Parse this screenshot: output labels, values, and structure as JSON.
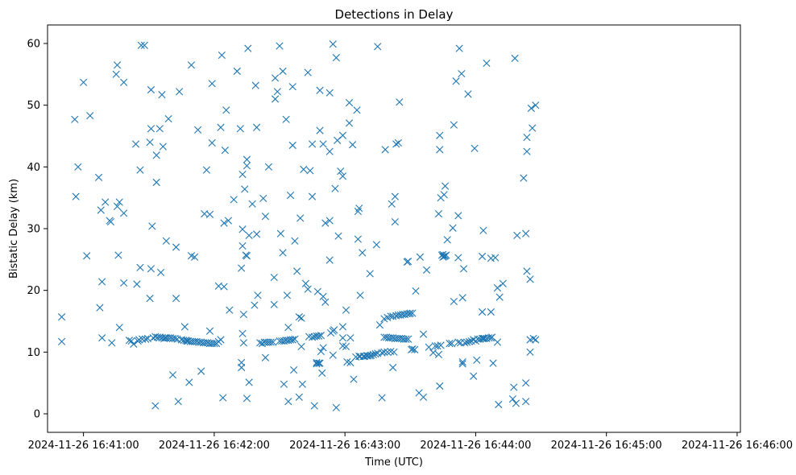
{
  "chart_data": {
    "type": "scatter",
    "title": "Detections in Delay",
    "xlabel": "Time (UTC)",
    "ylabel": "Bistatic Delay (km)",
    "marker": "x",
    "color": "#1f77b4",
    "x_unit": "seconds since 2024-11-26 16:41:00",
    "xlim": [
      -16.5,
      301.5
    ],
    "ylim": [
      -3.0,
      63.0
    ],
    "xticks": [
      {
        "value": 0,
        "label": "2024-11-26 16:41:00"
      },
      {
        "value": 60,
        "label": "2024-11-26 16:42:00"
      },
      {
        "value": 120,
        "label": "2024-11-26 16:43:00"
      },
      {
        "value": 180,
        "label": "2024-11-26 16:44:00"
      },
      {
        "value": 240,
        "label": "2024-11-26 16:45:00"
      },
      {
        "value": 300,
        "label": "2024-11-26 16:46:00"
      }
    ],
    "yticks": [
      {
        "value": 0,
        "label": "0"
      },
      {
        "value": 10,
        "label": "10"
      },
      {
        "value": 20,
        "label": "20"
      },
      {
        "value": 30,
        "label": "30"
      },
      {
        "value": 40,
        "label": "40"
      },
      {
        "value": 50,
        "label": "50"
      },
      {
        "value": 60,
        "label": "60"
      }
    ],
    "points": [
      [
        -10,
        15.7
      ],
      [
        -10,
        11.7
      ],
      [
        -4,
        47.7
      ],
      [
        -3.5,
        35.2
      ],
      [
        -2.5,
        40
      ],
      [
        0,
        53.7
      ],
      [
        1.5,
        25.6
      ],
      [
        3,
        48.3
      ],
      [
        7,
        38.3
      ],
      [
        7.5,
        17.2
      ],
      [
        8,
        33
      ],
      [
        8.5,
        21.4
      ],
      [
        8.5,
        12.3
      ],
      [
        10,
        34.3
      ],
      [
        12,
        31.3
      ],
      [
        12.5,
        31.1
      ],
      [
        13,
        11.5
      ],
      [
        15,
        55
      ],
      [
        15.5,
        56.5
      ],
      [
        15.5,
        33.6
      ],
      [
        16,
        25.7
      ],
      [
        16.5,
        34.3
      ],
      [
        16.5,
        14
      ],
      [
        18.5,
        53.7
      ],
      [
        18.5,
        32.5
      ],
      [
        18.5,
        21.2
      ],
      [
        21,
        11.9
      ],
      [
        22,
        11.8
      ],
      [
        23,
        11.3
      ],
      [
        24,
        43.7
      ],
      [
        24.5,
        21
      ],
      [
        25,
        11.8
      ],
      [
        25.5,
        12
      ],
      [
        26,
        39.5
      ],
      [
        26,
        23.7
      ],
      [
        26.5,
        59.7
      ],
      [
        27,
        12.1
      ],
      [
        28,
        59.7
      ],
      [
        28.5,
        12.1
      ],
      [
        29.5,
        12.2
      ],
      [
        30.5,
        44
      ],
      [
        30.5,
        18.7
      ],
      [
        31,
        52.5
      ],
      [
        31,
        46.2
      ],
      [
        31,
        23.5
      ],
      [
        31.5,
        30.4
      ],
      [
        32,
        12.3
      ],
      [
        33,
        12.5
      ],
      [
        33,
        1.3
      ],
      [
        33.5,
        41.9
      ],
      [
        33.5,
        37.5
      ],
      [
        34,
        12.4
      ],
      [
        35,
        46.2
      ],
      [
        35,
        12.4
      ],
      [
        35.5,
        22.9
      ],
      [
        36,
        12.3
      ],
      [
        36,
        51.7
      ],
      [
        36.5,
        43.3
      ],
      [
        37,
        12.2
      ],
      [
        37.5,
        12.3
      ],
      [
        38,
        12.3
      ],
      [
        38,
        28
      ],
      [
        39,
        12.3
      ],
      [
        39,
        47.8
      ],
      [
        40,
        12.3
      ],
      [
        41,
        12.2
      ],
      [
        41,
        6.3
      ],
      [
        42,
        12.2
      ],
      [
        42.5,
        18.7
      ],
      [
        42.5,
        27
      ],
      [
        43,
        12.1
      ],
      [
        43.5,
        2
      ],
      [
        44,
        52.2
      ],
      [
        45,
        12
      ],
      [
        46,
        11.9
      ],
      [
        46.5,
        14.1
      ],
      [
        47,
        11.9
      ],
      [
        47.5,
        11.8
      ],
      [
        48,
        11.8
      ],
      [
        48.5,
        5.1
      ],
      [
        49,
        11.7
      ],
      [
        49.5,
        56.5
      ],
      [
        49.5,
        25.6
      ],
      [
        50,
        11.7
      ],
      [
        51,
        11.7
      ],
      [
        51,
        25.4
      ],
      [
        52,
        11.7
      ],
      [
        52.5,
        46
      ],
      [
        53,
        11.6
      ],
      [
        54,
        11.6
      ],
      [
        54,
        6.9
      ],
      [
        55,
        11.5
      ],
      [
        55.5,
        32.4
      ],
      [
        56,
        11.5
      ],
      [
        56.5,
        39.5
      ],
      [
        57,
        11.5
      ],
      [
        58,
        11.4
      ],
      [
        58,
        32.3
      ],
      [
        58,
        13.4
      ],
      [
        59,
        11.4
      ],
      [
        59,
        43.9
      ],
      [
        59,
        53.5
      ],
      [
        60,
        11.4
      ],
      [
        61,
        11.4
      ],
      [
        62,
        11.7
      ],
      [
        62,
        20.7
      ],
      [
        63,
        46.4
      ],
      [
        63,
        12
      ],
      [
        63.5,
        58.1
      ],
      [
        64,
        2.6
      ],
      [
        64.5,
        30.9
      ],
      [
        64.5,
        20.6
      ],
      [
        65,
        42.7
      ],
      [
        65.5,
        49.2
      ],
      [
        66.5,
        31.3
      ],
      [
        67,
        16.8
      ],
      [
        69,
        34.7
      ],
      [
        70.5,
        55.5
      ],
      [
        72,
        46.2
      ],
      [
        72.5,
        23.6
      ],
      [
        72.5,
        8.3
      ],
      [
        72.5,
        7.5
      ],
      [
        73,
        38.8
      ],
      [
        73,
        29.9
      ],
      [
        73,
        27.2
      ],
      [
        73,
        13
      ],
      [
        73.5,
        11.5
      ],
      [
        73.5,
        16.1
      ],
      [
        74,
        36.4
      ],
      [
        74.5,
        25.7
      ],
      [
        75,
        41.2
      ],
      [
        75,
        40.2
      ],
      [
        75,
        25.6
      ],
      [
        75,
        2.5
      ],
      [
        75.5,
        59.2
      ],
      [
        76,
        28.9
      ],
      [
        76,
        5.1
      ],
      [
        77.5,
        34
      ],
      [
        78.5,
        17.6
      ],
      [
        79,
        53.2
      ],
      [
        79.5,
        46.4
      ],
      [
        79.5,
        29.1
      ],
      [
        80,
        19.2
      ],
      [
        81,
        11.5
      ],
      [
        82,
        11.4
      ],
      [
        82.5,
        34.9
      ],
      [
        83,
        11.6
      ],
      [
        83.5,
        9.1
      ],
      [
        83.5,
        32
      ],
      [
        84,
        11.6
      ],
      [
        85,
        40
      ],
      [
        85,
        11.6
      ],
      [
        86,
        11.6
      ],
      [
        87,
        11.6
      ],
      [
        87.5,
        22.1
      ],
      [
        87.5,
        17.7
      ],
      [
        88,
        54.4
      ],
      [
        88,
        51
      ],
      [
        89,
        52.2
      ],
      [
        90,
        59.6
      ],
      [
        90,
        11.8
      ],
      [
        90.5,
        29.2
      ],
      [
        91,
        11.8
      ],
      [
        91.5,
        55.5
      ],
      [
        91.5,
        26.1
      ],
      [
        92,
        11.8
      ],
      [
        92,
        4.8
      ],
      [
        93,
        47.7
      ],
      [
        93,
        11.9
      ],
      [
        93.5,
        19.2
      ],
      [
        94,
        2
      ],
      [
        94,
        14
      ],
      [
        94,
        11.9
      ],
      [
        95,
        35.4
      ],
      [
        95,
        12
      ],
      [
        96,
        43.5
      ],
      [
        96,
        53
      ],
      [
        96,
        12
      ],
      [
        96.5,
        7.1
      ],
      [
        97,
        12.1
      ],
      [
        97,
        28
      ],
      [
        98,
        23.1
      ],
      [
        99,
        2.7
      ],
      [
        99,
        15.7
      ],
      [
        99.5,
        31.7
      ],
      [
        100,
        15.5
      ],
      [
        100,
        10.9
      ],
      [
        100.5,
        4.8
      ],
      [
        101,
        39.6
      ],
      [
        102,
        21.1
      ],
      [
        103,
        55.3
      ],
      [
        103,
        20.2
      ],
      [
        103.5,
        12.5
      ],
      [
        104,
        39.4
      ],
      [
        105,
        35.2
      ],
      [
        105,
        43.7
      ],
      [
        105,
        12.4
      ],
      [
        106,
        12.5
      ],
      [
        106,
        1.3
      ],
      [
        107,
        12.6
      ],
      [
        107,
        8.3
      ],
      [
        107,
        8.1
      ],
      [
        107.5,
        19.8
      ],
      [
        108,
        12.6
      ],
      [
        108,
        8.2
      ],
      [
        108.5,
        8.2
      ],
      [
        108.5,
        45.9
      ],
      [
        108.5,
        52.4
      ],
      [
        109,
        12.7
      ],
      [
        109,
        10.1
      ],
      [
        109.5,
        6.6
      ],
      [
        110,
        19
      ],
      [
        110,
        43.7
      ],
      [
        110,
        10.7
      ],
      [
        111,
        18.1
      ],
      [
        111,
        30.9
      ],
      [
        113,
        42.5
      ],
      [
        113,
        52
      ],
      [
        113,
        31.3
      ],
      [
        113,
        24.9
      ],
      [
        113.5,
        13.1
      ],
      [
        114.5,
        13.4
      ],
      [
        114.5,
        9.5
      ],
      [
        114.5,
        59.9
      ],
      [
        115,
        13.6
      ],
      [
        115.5,
        36.5
      ],
      [
        116,
        57.7
      ],
      [
        116,
        1
      ],
      [
        116.5,
        44.3
      ],
      [
        117,
        28.8
      ],
      [
        118,
        39.3
      ],
      [
        119,
        11
      ],
      [
        119,
        12.3
      ],
      [
        119,
        14.1
      ],
      [
        119,
        38.5
      ],
      [
        119,
        45.1
      ],
      [
        120.5,
        16.8
      ],
      [
        120.5,
        10.9
      ],
      [
        121,
        8.4
      ],
      [
        122,
        50.4
      ],
      [
        122,
        47.1
      ],
      [
        122.5,
        12.3
      ],
      [
        122.5,
        8.3
      ],
      [
        123.5,
        43.6
      ],
      [
        124,
        5.6
      ],
      [
        125,
        9.2
      ],
      [
        125.5,
        49.2
      ],
      [
        126,
        32.8
      ],
      [
        126,
        28.3
      ],
      [
        126.5,
        33.3
      ],
      [
        126.5,
        9.3
      ],
      [
        127,
        19.2
      ],
      [
        127,
        9.3
      ],
      [
        128,
        26.1
      ],
      [
        128.5,
        9.3
      ],
      [
        129,
        9.3
      ],
      [
        130,
        9.4
      ],
      [
        130.5,
        9.4
      ],
      [
        131.5,
        9.4
      ],
      [
        131.5,
        22.7
      ],
      [
        132,
        9.5
      ],
      [
        133,
        9.6
      ],
      [
        134,
        9.7
      ],
      [
        134.5,
        27.4
      ],
      [
        135,
        59.5
      ],
      [
        135,
        9.8
      ],
      [
        136,
        14.4
      ],
      [
        137,
        9.9
      ],
      [
        137,
        2.6
      ],
      [
        138,
        10
      ],
      [
        138,
        12.4
      ],
      [
        138,
        15.4
      ],
      [
        138.5,
        42.8
      ],
      [
        139,
        12.4
      ],
      [
        139.5,
        15.6
      ],
      [
        139.5,
        10
      ],
      [
        140,
        12.3
      ],
      [
        141,
        15.8
      ],
      [
        141,
        12.3
      ],
      [
        141,
        10.1
      ],
      [
        141.5,
        34
      ],
      [
        142,
        12.3
      ],
      [
        142,
        7.5
      ],
      [
        142,
        15.8
      ],
      [
        142.5,
        10
      ],
      [
        143,
        35.2
      ],
      [
        143,
        31.1
      ],
      [
        143,
        12.2
      ],
      [
        143.5,
        43.7
      ],
      [
        143.5,
        15.9
      ],
      [
        144,
        12.2
      ],
      [
        144.5,
        43.9
      ],
      [
        144.5,
        16
      ],
      [
        145,
        12.2
      ],
      [
        145,
        50.5
      ],
      [
        145.5,
        16
      ],
      [
        146,
        12.2
      ],
      [
        146.5,
        16.1
      ],
      [
        147,
        12.1
      ],
      [
        147.5,
        16.1
      ],
      [
        148,
        12.1
      ],
      [
        148.5,
        24.6
      ],
      [
        148.5,
        16.2
      ],
      [
        149,
        24.7
      ],
      [
        149,
        12.1
      ],
      [
        149.5,
        16.2
      ],
      [
        150,
        16.3
      ],
      [
        150.5,
        10.4
      ],
      [
        151,
        16.3
      ],
      [
        151,
        10.5
      ],
      [
        152,
        10.4
      ],
      [
        152.5,
        19.9
      ],
      [
        154,
        3.4
      ],
      [
        154.5,
        25.4
      ],
      [
        156,
        2.7
      ],
      [
        156,
        12.9
      ],
      [
        157.5,
        23.3
      ],
      [
        158.5,
        10.8
      ],
      [
        160.5,
        9.9
      ],
      [
        161.5,
        11
      ],
      [
        162.5,
        11
      ],
      [
        163,
        9.6
      ],
      [
        163,
        32.4
      ],
      [
        163.5,
        45.1
      ],
      [
        163.5,
        42.8
      ],
      [
        163.5,
        4.5
      ],
      [
        164,
        11.1
      ],
      [
        164,
        35
      ],
      [
        164.5,
        25.7
      ],
      [
        165,
        25.4
      ],
      [
        165,
        25.8
      ],
      [
        165.5,
        25.5
      ],
      [
        165.5,
        35.5
      ],
      [
        166,
        25.6
      ],
      [
        166,
        36.9
      ],
      [
        166.5,
        25.7
      ],
      [
        167,
        28.2
      ],
      [
        168,
        11.4
      ],
      [
        169,
        11.4
      ],
      [
        169.5,
        30.1
      ],
      [
        170,
        18.2
      ],
      [
        170,
        46.8
      ],
      [
        171,
        53.9
      ],
      [
        172,
        11.6
      ],
      [
        172,
        25.3
      ],
      [
        172,
        32.1
      ],
      [
        172.5,
        59.2
      ],
      [
        173,
        11.5
      ],
      [
        173.5,
        55.1
      ],
      [
        174,
        8.4
      ],
      [
        174,
        8.1
      ],
      [
        174,
        18.8
      ],
      [
        174.5,
        23.5
      ],
      [
        175,
        11.5
      ],
      [
        176,
        11.6
      ],
      [
        176.5,
        51.8
      ],
      [
        177,
        11.7
      ],
      [
        178,
        11.8
      ],
      [
        179,
        12
      ],
      [
        179,
        6.1
      ],
      [
        179.5,
        43
      ],
      [
        180,
        11.8
      ],
      [
        180.5,
        8.7
      ],
      [
        181,
        12.1
      ],
      [
        182,
        12.1
      ],
      [
        183,
        12.2
      ],
      [
        183,
        25.5
      ],
      [
        183.5,
        29.7
      ],
      [
        183,
        16.5
      ],
      [
        183.5,
        12.2
      ],
      [
        184,
        12.2
      ],
      [
        185,
        12.2
      ],
      [
        185,
        56.8
      ],
      [
        186,
        12.3
      ],
      [
        187,
        12.3
      ],
      [
        187,
        25.2
      ],
      [
        187,
        16.5
      ],
      [
        187.5,
        12.4
      ],
      [
        188,
        8.2
      ],
      [
        189,
        25.3
      ],
      [
        190,
        11.6
      ],
      [
        190,
        20.4
      ],
      [
        190.5,
        1.5
      ],
      [
        191,
        18.9
      ],
      [
        192.5,
        21.1
      ],
      [
        197,
        2.4
      ],
      [
        197.5,
        4.3
      ],
      [
        198,
        57.6
      ],
      [
        198.5,
        1.7
      ],
      [
        199,
        28.9
      ],
      [
        202,
        38.2
      ],
      [
        203,
        5
      ],
      [
        203,
        29.2
      ],
      [
        203,
        2
      ],
      [
        203.5,
        42.5
      ],
      [
        203.5,
        44.8
      ],
      [
        203.5,
        23.1
      ],
      [
        205,
        21.8
      ],
      [
        205,
        10
      ],
      [
        205,
        12
      ],
      [
        205.5,
        49.5
      ],
      [
        206,
        46.3
      ],
      [
        206.5,
        12.2
      ],
      [
        207.5,
        50
      ],
      [
        207.5,
        12
      ]
    ]
  }
}
